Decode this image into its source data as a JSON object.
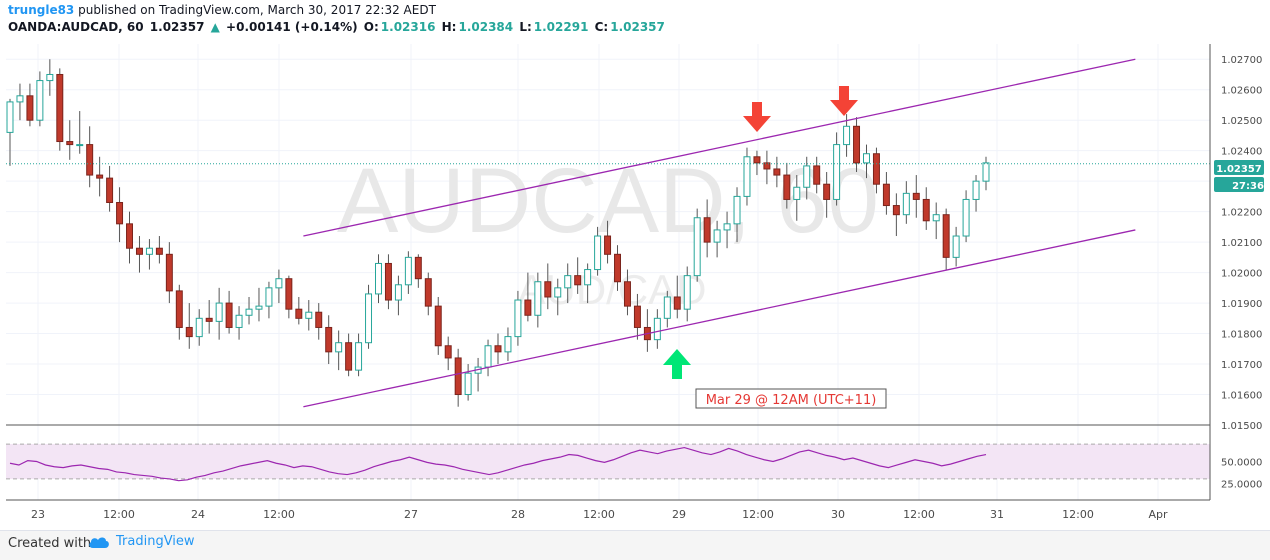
{
  "header": {
    "user": "trungle83",
    "published": " published on TradingView.com, March 30, 2017 22:32 AEDT",
    "symbol": "OANDA:AUDCAD, 60",
    "last": "1.02357",
    "change": "+0.00141 (+0.14%)",
    "o_label": "O:",
    "o": "1.02316",
    "h_label": "H:",
    "h": "1.02384",
    "l_label": "L:",
    "l": "1.02291",
    "c_label": "C:",
    "c": "1.02357"
  },
  "watermark": {
    "main": "AUDCAD, 60",
    "sub": "AUD/CAD"
  },
  "annotation": "Mar 29 @ 12AM (UTC+11)",
  "price_badge": "1.02357",
  "countdown": "27:36",
  "colors": {
    "up": "#26a69a",
    "down": "#c0392b",
    "channel": "#9c27b0",
    "arrow_red": "#f44336",
    "arrow_green": "#00e676",
    "rsi_fill": "#f3e5f5",
    "rsi_line": "#9c27b0"
  },
  "chart_data": {
    "type": "candlestick",
    "y_ticks": [
      "1.02700",
      "1.02600",
      "1.02500",
      "1.02400",
      "1.02300",
      "1.02200",
      "1.02100",
      "1.02000",
      "1.01900",
      "1.01800",
      "1.01700",
      "1.01600",
      "1.01500"
    ],
    "ylim": [
      1.015,
      1.0275
    ],
    "x_ticks": [
      "23",
      "12:00",
      "24",
      "12:00",
      "27",
      "28",
      "12:00",
      "29",
      "12:00",
      "30",
      "12:00",
      "31",
      "12:00",
      "Apr"
    ],
    "rsi_ticks": [
      "50.0000",
      "25.0000"
    ],
    "candles": [
      [
        1.0246,
        1.0257,
        1.0235,
        1.0256
      ],
      [
        1.0256,
        1.0262,
        1.025,
        1.0258
      ],
      [
        1.0258,
        1.0262,
        1.0248,
        1.025
      ],
      [
        1.025,
        1.0266,
        1.0248,
        1.0263
      ],
      [
        1.0263,
        1.027,
        1.0258,
        1.0265
      ],
      [
        1.0265,
        1.0267,
        1.024,
        1.0243
      ],
      [
        1.0243,
        1.025,
        1.0237,
        1.0242
      ],
      [
        1.0242,
        1.0253,
        1.0239,
        1.0242
      ],
      [
        1.0242,
        1.0248,
        1.0228,
        1.0232
      ],
      [
        1.0232,
        1.0238,
        1.0225,
        1.0231
      ],
      [
        1.0231,
        1.0235,
        1.022,
        1.0223
      ],
      [
        1.0223,
        1.0228,
        1.021,
        1.0216
      ],
      [
        1.0216,
        1.022,
        1.0203,
        1.0208
      ],
      [
        1.0208,
        1.0212,
        1.02,
        1.0206
      ],
      [
        1.0206,
        1.0211,
        1.0201,
        1.0208
      ],
      [
        1.0208,
        1.0212,
        1.0203,
        1.0206
      ],
      [
        1.0206,
        1.021,
        1.019,
        1.0194
      ],
      [
        1.0194,
        1.0196,
        1.0178,
        1.0182
      ],
      [
        1.0182,
        1.019,
        1.0175,
        1.0179
      ],
      [
        1.0179,
        1.0188,
        1.0176,
        1.0185
      ],
      [
        1.0185,
        1.0191,
        1.018,
        1.0184
      ],
      [
        1.0184,
        1.0195,
        1.0178,
        1.019
      ],
      [
        1.019,
        1.0194,
        1.018,
        1.0182
      ],
      [
        1.0182,
        1.0189,
        1.0178,
        1.0186
      ],
      [
        1.0186,
        1.0192,
        1.0183,
        1.0188
      ],
      [
        1.0188,
        1.0195,
        1.0184,
        1.0189
      ],
      [
        1.0189,
        1.0197,
        1.0185,
        1.0195
      ],
      [
        1.0195,
        1.0201,
        1.019,
        1.0198
      ],
      [
        1.0198,
        1.0199,
        1.0185,
        1.0188
      ],
      [
        1.0188,
        1.0192,
        1.0183,
        1.0185
      ],
      [
        1.0185,
        1.0191,
        1.0181,
        1.0187
      ],
      [
        1.0187,
        1.019,
        1.0178,
        1.0182
      ],
      [
        1.0182,
        1.0186,
        1.017,
        1.0174
      ],
      [
        1.0174,
        1.0181,
        1.0168,
        1.0177
      ],
      [
        1.0177,
        1.018,
        1.0166,
        1.0168
      ],
      [
        1.0168,
        1.018,
        1.0166,
        1.0177
      ],
      [
        1.0177,
        1.0196,
        1.0175,
        1.0193
      ],
      [
        1.0193,
        1.0206,
        1.019,
        1.0203
      ],
      [
        1.0203,
        1.0206,
        1.0188,
        1.0191
      ],
      [
        1.0191,
        1.0199,
        1.0186,
        1.0196
      ],
      [
        1.0196,
        1.0207,
        1.0193,
        1.0205
      ],
      [
        1.0205,
        1.0206,
        1.0195,
        1.0198
      ],
      [
        1.0198,
        1.02,
        1.0186,
        1.0189
      ],
      [
        1.0189,
        1.0192,
        1.0173,
        1.0176
      ],
      [
        1.0176,
        1.0179,
        1.0168,
        1.0172
      ],
      [
        1.0172,
        1.0175,
        1.0156,
        1.016
      ],
      [
        1.016,
        1.017,
        1.0158,
        1.0167
      ],
      [
        1.0167,
        1.0172,
        1.0161,
        1.0169
      ],
      [
        1.0169,
        1.0178,
        1.0166,
        1.0176
      ],
      [
        1.0176,
        1.018,
        1.017,
        1.0174
      ],
      [
        1.0174,
        1.0182,
        1.0171,
        1.0179
      ],
      [
        1.0179,
        1.0194,
        1.0176,
        1.0191
      ],
      [
        1.0191,
        1.02,
        1.0184,
        1.0186
      ],
      [
        1.0186,
        1.02,
        1.0182,
        1.0197
      ],
      [
        1.0197,
        1.0203,
        1.0188,
        1.0192
      ],
      [
        1.0192,
        1.0198,
        1.0186,
        1.0195
      ],
      [
        1.0195,
        1.0203,
        1.019,
        1.0199
      ],
      [
        1.0199,
        1.0205,
        1.0193,
        1.0196
      ],
      [
        1.0196,
        1.0203,
        1.019,
        1.0201
      ],
      [
        1.0201,
        1.0215,
        1.0199,
        1.0212
      ],
      [
        1.0212,
        1.0217,
        1.0203,
        1.0206
      ],
      [
        1.0206,
        1.0209,
        1.0194,
        1.0197
      ],
      [
        1.0197,
        1.0201,
        1.0186,
        1.0189
      ],
      [
        1.0189,
        1.0193,
        1.0178,
        1.0182
      ],
      [
        1.0182,
        1.0188,
        1.0174,
        1.0178
      ],
      [
        1.0178,
        1.0188,
        1.0175,
        1.0185
      ],
      [
        1.0185,
        1.0194,
        1.0182,
        1.0192
      ],
      [
        1.0192,
        1.0199,
        1.0185,
        1.0188
      ],
      [
        1.0188,
        1.0202,
        1.0184,
        1.0199
      ],
      [
        1.0199,
        1.0221,
        1.0197,
        1.0218
      ],
      [
        1.0218,
        1.0224,
        1.0205,
        1.021
      ],
      [
        1.021,
        1.0217,
        1.0205,
        1.0214
      ],
      [
        1.0214,
        1.022,
        1.0208,
        1.0216
      ],
      [
        1.0216,
        1.0228,
        1.021,
        1.0225
      ],
      [
        1.0225,
        1.0241,
        1.0222,
        1.0238
      ],
      [
        1.0238,
        1.024,
        1.0232,
        1.0236
      ],
      [
        1.0236,
        1.024,
        1.0229,
        1.0234
      ],
      [
        1.0234,
        1.0238,
        1.0228,
        1.0232
      ],
      [
        1.0232,
        1.0236,
        1.0221,
        1.0224
      ],
      [
        1.0224,
        1.0232,
        1.0217,
        1.0228
      ],
      [
        1.0228,
        1.0238,
        1.0224,
        1.0235
      ],
      [
        1.0235,
        1.0238,
        1.0226,
        1.0229
      ],
      [
        1.0229,
        1.0233,
        1.0218,
        1.0224
      ],
      [
        1.0224,
        1.0246,
        1.0222,
        1.0242
      ],
      [
        1.0242,
        1.0252,
        1.0238,
        1.0248
      ],
      [
        1.0248,
        1.0251,
        1.0233,
        1.0236
      ],
      [
        1.0236,
        1.0242,
        1.0231,
        1.0239
      ],
      [
        1.0239,
        1.0241,
        1.0226,
        1.0229
      ],
      [
        1.0229,
        1.0233,
        1.0219,
        1.0222
      ],
      [
        1.0222,
        1.0226,
        1.0212,
        1.0219
      ],
      [
        1.0219,
        1.023,
        1.0216,
        1.0226
      ],
      [
        1.0226,
        1.0232,
        1.0218,
        1.0224
      ],
      [
        1.0224,
        1.0228,
        1.0214,
        1.0217
      ],
      [
        1.0217,
        1.0223,
        1.0211,
        1.0219
      ],
      [
        1.0219,
        1.0221,
        1.0201,
        1.0205
      ],
      [
        1.0205,
        1.0215,
        1.0202,
        1.0212
      ],
      [
        1.0212,
        1.0227,
        1.021,
        1.0224
      ],
      [
        1.0224,
        1.0232,
        1.022,
        1.023
      ],
      [
        1.023,
        1.0238,
        1.0227,
        1.0236
      ]
    ],
    "channel_upper": {
      "from": [
        1.0212,
        0.247
      ],
      "to": [
        1.027,
        0.938
      ]
    },
    "channel_lower": {
      "from": [
        1.0156,
        0.247
      ],
      "to": [
        1.0214,
        0.938
      ]
    },
    "rsi": [
      48,
      46,
      51,
      50,
      46,
      44,
      43,
      45,
      46,
      44,
      42,
      41,
      38,
      37,
      35,
      34,
      33,
      31,
      30,
      28,
      29,
      32,
      34,
      37,
      39,
      42,
      45,
      47,
      49,
      51,
      48,
      46,
      43,
      45,
      44,
      41,
      38,
      36,
      35,
      37,
      40,
      44,
      47,
      50,
      52,
      55,
      52,
      49,
      47,
      46,
      44,
      41,
      39,
      37,
      35,
      37,
      40,
      43,
      46,
      48,
      51,
      53,
      55,
      58,
      57,
      54,
      51,
      49,
      52,
      56,
      60,
      63,
      61,
      59,
      62,
      64,
      66,
      63,
      60,
      58,
      61,
      65,
      62,
      58,
      55,
      52,
      50,
      53,
      57,
      61,
      63,
      60,
      57,
      55,
      52,
      54,
      51,
      48,
      45,
      43,
      46,
      49,
      52,
      50,
      48,
      45,
      47,
      50,
      53,
      56,
      58
    ]
  }
}
